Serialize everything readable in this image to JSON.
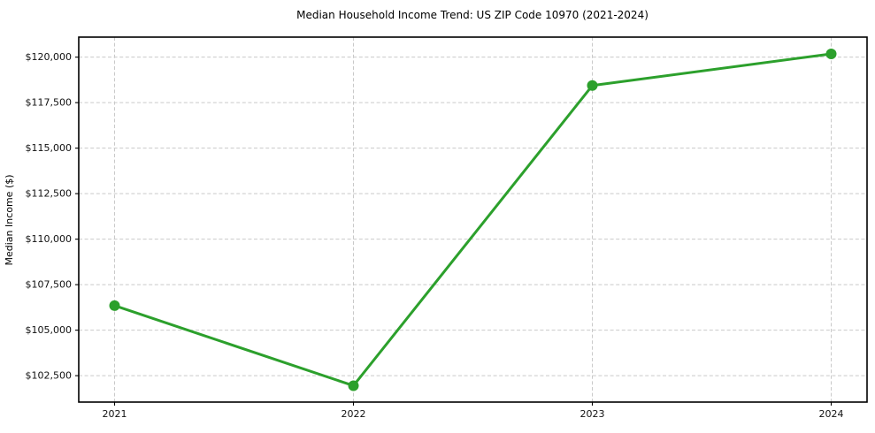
{
  "chart_data": {
    "type": "line",
    "title": "Median Household Income Trend: US ZIP Code 10970 (2021-2024)",
    "xlabel": "",
    "ylabel": "Median Income ($)",
    "categories": [
      "2021",
      "2022",
      "2023",
      "2024"
    ],
    "series": [
      {
        "name": "Median Household Income",
        "values": [
          106350,
          101950,
          118440,
          120180
        ]
      }
    ],
    "yticks": [
      102500,
      105000,
      107500,
      110000,
      112500,
      115000,
      117500,
      120000
    ],
    "ytick_labels": [
      "$102,500",
      "$105,000",
      "$107,500",
      "$110,000",
      "$112,500",
      "$115,000",
      "$117,500",
      "$120,000"
    ],
    "ylim": [
      101050,
      121100
    ],
    "xlim": [
      -0.15,
      3.15
    ],
    "grid": true,
    "legend": "none",
    "line_color": "#2ca02c",
    "marker": "circle",
    "background": "#ffffff"
  }
}
